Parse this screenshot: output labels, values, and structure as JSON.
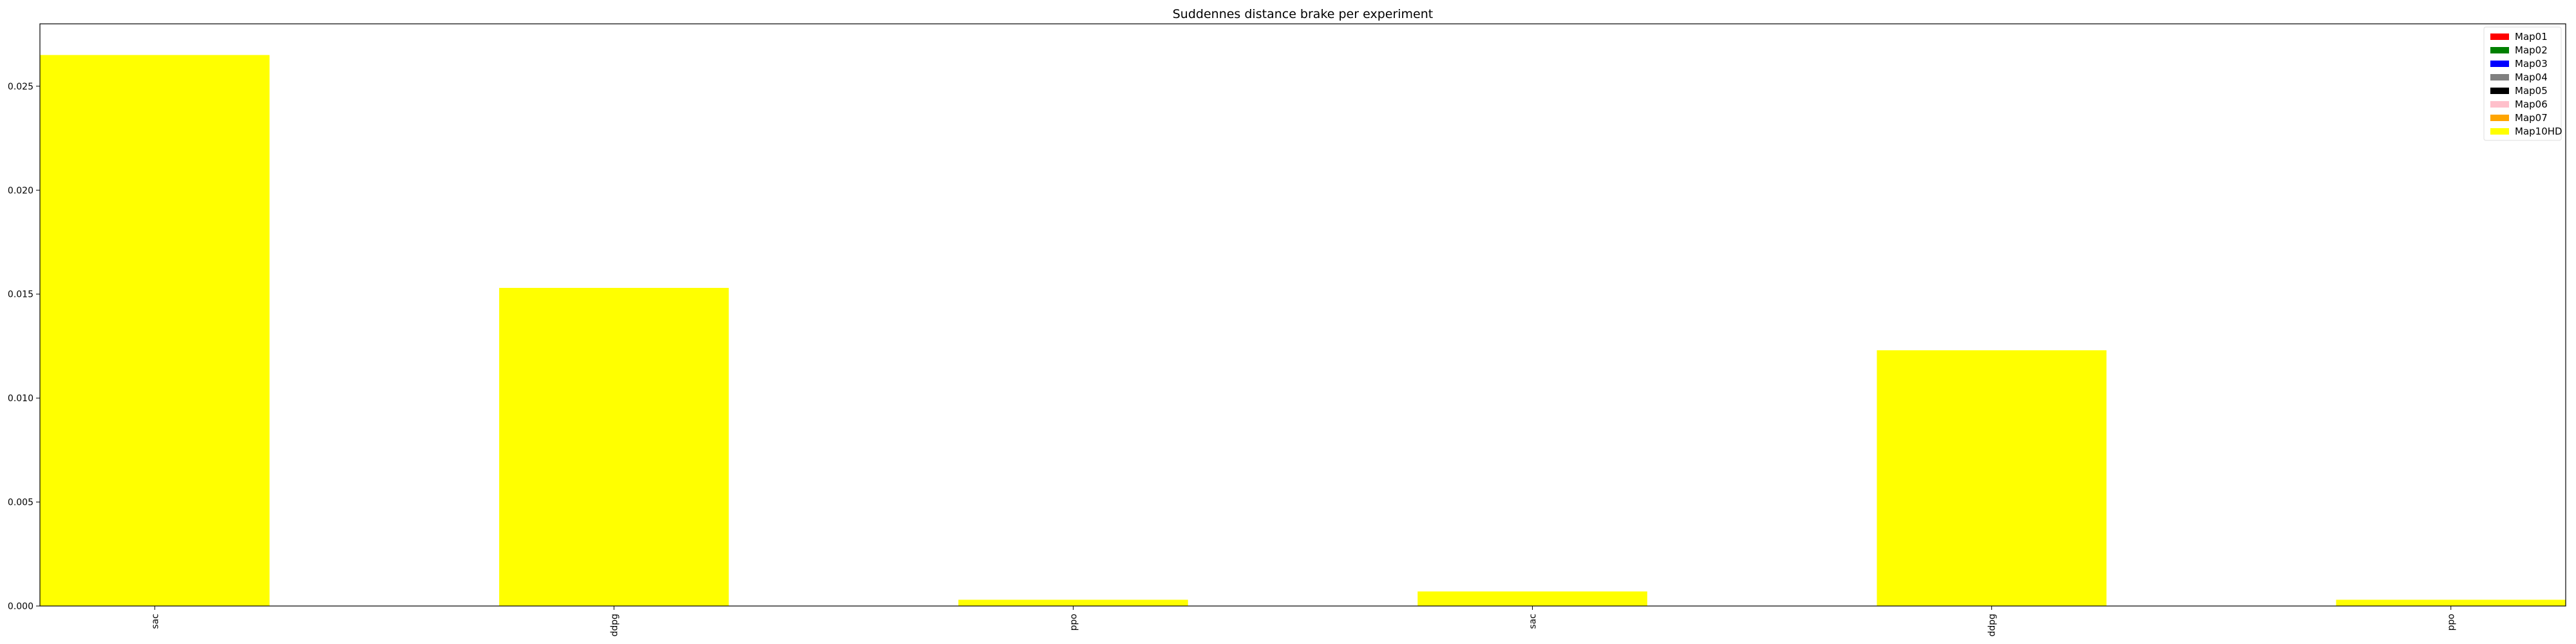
{
  "chart_data": {
    "type": "bar",
    "title": "Suddennes distance brake per experiment",
    "xlabel": "",
    "ylabel": "",
    "categories": [
      "sac",
      "ddpg",
      "ppo",
      "sac",
      "ddpg",
      "ppo"
    ],
    "series": [
      {
        "name": "Map01",
        "color": "#ff0000",
        "values": [
          0,
          0,
          0,
          0,
          0,
          0
        ]
      },
      {
        "name": "Map02",
        "color": "#008000",
        "values": [
          0,
          0,
          0,
          0,
          0,
          0
        ]
      },
      {
        "name": "Map03",
        "color": "#0000ff",
        "values": [
          0,
          0,
          0,
          0,
          0,
          0
        ]
      },
      {
        "name": "Map04",
        "color": "#808080",
        "values": [
          0,
          0,
          0,
          0,
          0,
          0
        ]
      },
      {
        "name": "Map05",
        "color": "#000000",
        "values": [
          0,
          0,
          0,
          0,
          0,
          0
        ]
      },
      {
        "name": "Map06",
        "color": "#ffc0cb",
        "values": [
          0,
          0,
          0,
          0,
          0,
          0
        ]
      },
      {
        "name": "Map07",
        "color": "#ffa500",
        "values": [
          0,
          0,
          0,
          0,
          0,
          0
        ]
      },
      {
        "name": "Map10HD",
        "color": "#ffff00",
        "values": [
          0.0265,
          0.0153,
          0.0003,
          0.0007,
          0.0123,
          0.0003
        ]
      }
    ],
    "ylim": [
      0,
      0.028
    ],
    "yticks": [
      "0.000",
      "0.005",
      "0.010",
      "0.015",
      "0.020",
      "0.025"
    ],
    "ytick_values": [
      0,
      0.005,
      0.01,
      0.015,
      0.02,
      0.025
    ],
    "grid": false,
    "legend_position": "top-right"
  }
}
